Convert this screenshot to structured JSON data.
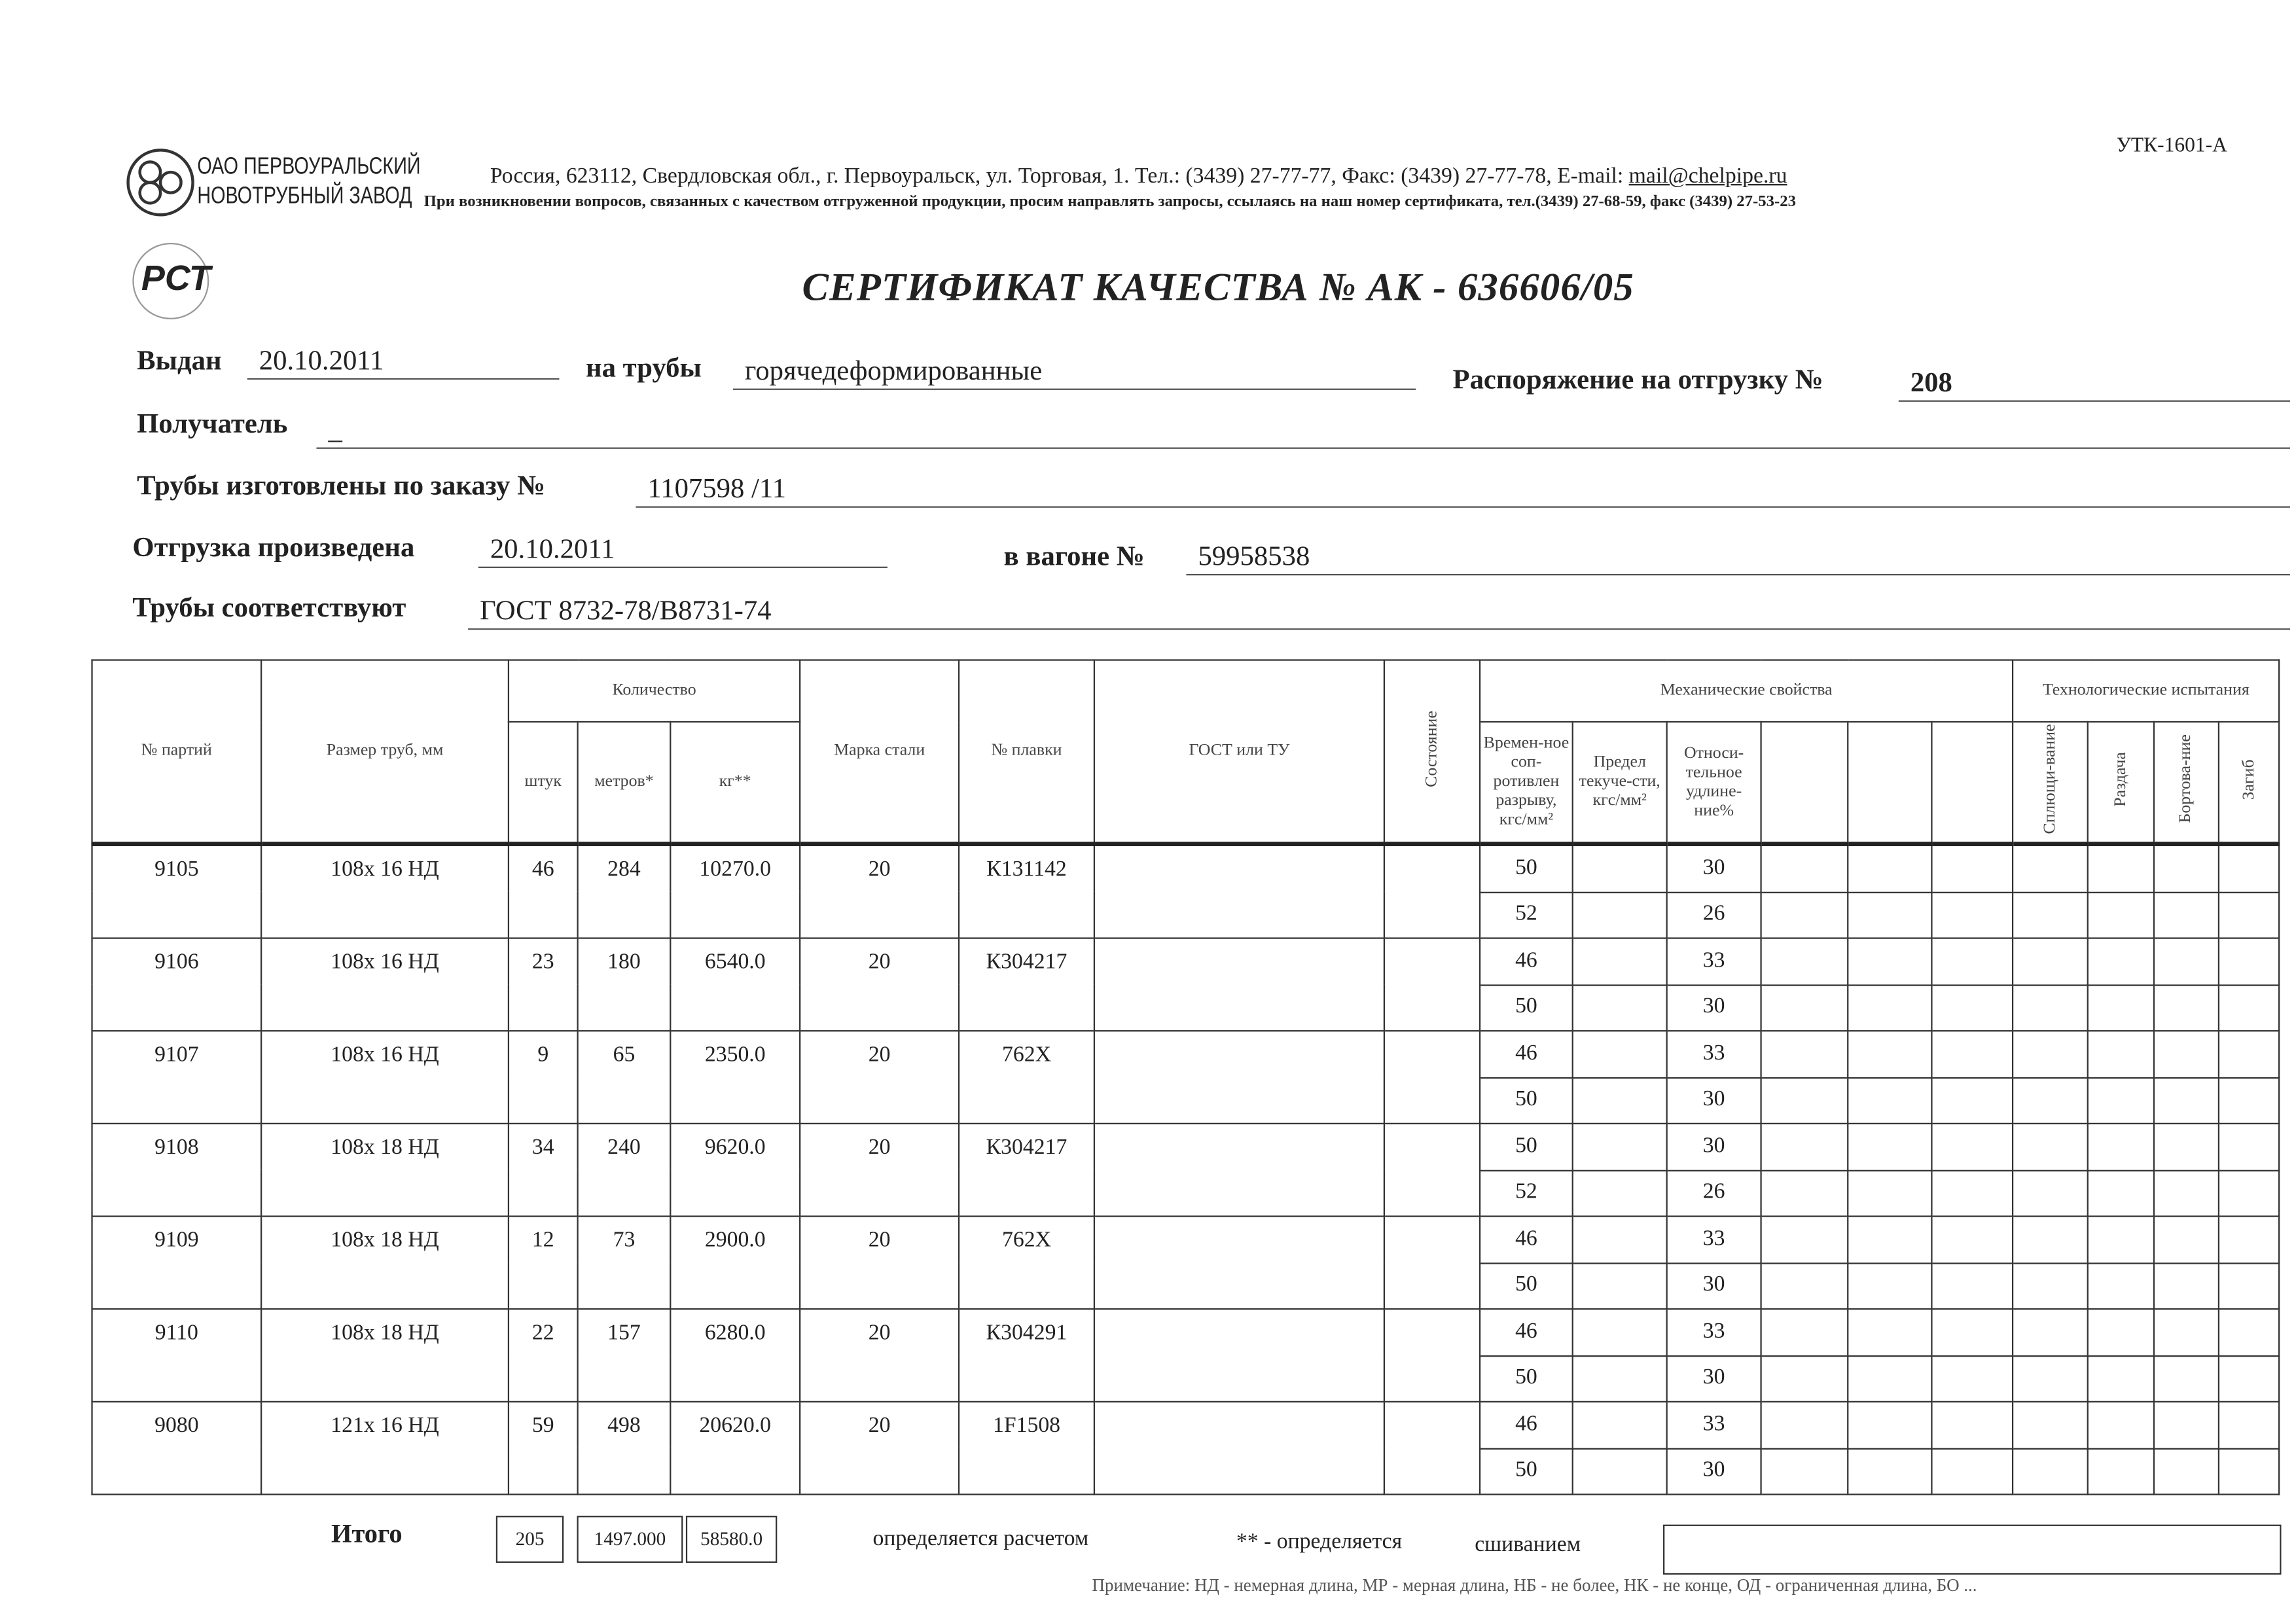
{
  "header": {
    "company_line1": "ОАО ПЕРВОУРАЛЬСКИЙ",
    "company_line2": "НОВОТРУБНЫЙ ЗАВОД",
    "address": "Россия, 623112, Свердловская обл., г. Первоуральск, ул. Торговая, 1. Тел.: (3439) 27-77-77, Факс: (3439) 27-77-78,  E-mail: ",
    "email": "mail@chelpipe.ru",
    "notice": "При возникновении вопросов, связанных с качеством отгруженной продукции, просим направлять запросы, ссылаясь на наш номер сертификата, тел.(3439) 27-68-59, факс (3439) 27-53-23",
    "form_code": "УТК-1601-А",
    "cert_logo": "РСТ"
  },
  "title": "СЕРТИФИКАТ КАЧЕСТВА   №  АК -  636606/05",
  "fields": {
    "issued_label": "Выдан",
    "issued": "20.10.2011",
    "pipes_label": "на трубы",
    "pipes": "горячедеформированные",
    "order_label": "Распоряжение на отгрузку №",
    "order": "208",
    "recipient_label": "Получатель",
    "recipient": "_",
    "made_label": "Трубы изготовлены по заказу №",
    "made": "1107598   /11",
    "shipped_label": "Отгрузка произведена",
    "shipped": "20.10.2011",
    "wagon_label": "в вагоне №",
    "wagon": "59958538",
    "conform_label": "Трубы соответствуют",
    "conform": "ГОСТ 8732-78/В8731-74"
  },
  "table": {
    "headers": {
      "lot": "№ партий",
      "size": "Размер труб, мм",
      "qty": "Количество",
      "pcs": "штук",
      "meters": "метров*",
      "kg": "кг**",
      "grade": "Марка стали",
      "heat": "№ плавки",
      "gost": "ГОСТ или ТУ",
      "state": "Состояние",
      "mech": "Механические свойства",
      "tensile": "Времен-ное соп-ротивлен разрыву, кгс/мм²",
      "yield": "Предел текуче-сти, кгс/мм²",
      "elong": "Относи-тельное удлине-ние%",
      "tech": "Технологические испытания",
      "flatten": "Сплющи-вание",
      "expand": "Раздача",
      "flange": "Бортова-ние",
      "bend": "Загиб"
    },
    "lots": [
      {
        "lot": "9105",
        "size": "108x 16 НД",
        "pcs": "46",
        "meters": "284",
        "kg": "10270.0",
        "grade": "20",
        "heat": "К131142"
      },
      {
        "lot": "9106",
        "size": "108x 16 НД",
        "pcs": "23",
        "meters": "180",
        "kg": "6540.0",
        "grade": "20",
        "heat": "К304217"
      },
      {
        "lot": "9107",
        "size": "108x 16 НД",
        "pcs": "9",
        "meters": "65",
        "kg": "2350.0",
        "grade": "20",
        "heat": "762X"
      },
      {
        "lot": "9108",
        "size": "108x 18 НД",
        "pcs": "34",
        "meters": "240",
        "kg": "9620.0",
        "grade": "20",
        "heat": "К304217"
      },
      {
        "lot": "9109",
        "size": "108x 18 НД",
        "pcs": "12",
        "meters": "73",
        "kg": "2900.0",
        "grade": "20",
        "heat": "762X"
      },
      {
        "lot": "9110",
        "size": "108x 18 НД",
        "pcs": "22",
        "meters": "157",
        "kg": "6280.0",
        "grade": "20",
        "heat": "К304291"
      },
      {
        "lot": "9080",
        "size": "121x 16 НД",
        "pcs": "59",
        "meters": "498",
        "kg": "20620.0",
        "grade": "20",
        "heat": "1F1508"
      }
    ],
    "mech_rows": [
      {
        "tensile": "50",
        "elong": "30"
      },
      {
        "tensile": "52",
        "elong": "26"
      },
      {
        "tensile": "46",
        "elong": "33"
      },
      {
        "tensile": "50",
        "elong": "30"
      },
      {
        "tensile": "46",
        "elong": "33"
      },
      {
        "tensile": "50",
        "elong": "30"
      },
      {
        "tensile": "50",
        "elong": "30"
      },
      {
        "tensile": "52",
        "elong": "26"
      },
      {
        "tensile": "46",
        "elong": "33"
      },
      {
        "tensile": "50",
        "elong": "30"
      },
      {
        "tensile": "46",
        "elong": "33"
      },
      {
        "tensile": "50",
        "elong": "30"
      },
      {
        "tensile": "46",
        "elong": "33"
      },
      {
        "tensile": "50",
        "elong": "30"
      }
    ],
    "totals": {
      "label": "Итого",
      "pcs": "205",
      "meters": "1497.000",
      "kg": "58580.0"
    }
  },
  "footnotes": {
    "calc": "определяется расчетом",
    "weigh_prefix": "** - определяется",
    "weigh_suffix": "сшиванием",
    "note": "Примечание: НД - немерная длина, МР - мерная длина, НБ - не более, НК - не конце, ОД - ограниченная длина, БО ..."
  }
}
